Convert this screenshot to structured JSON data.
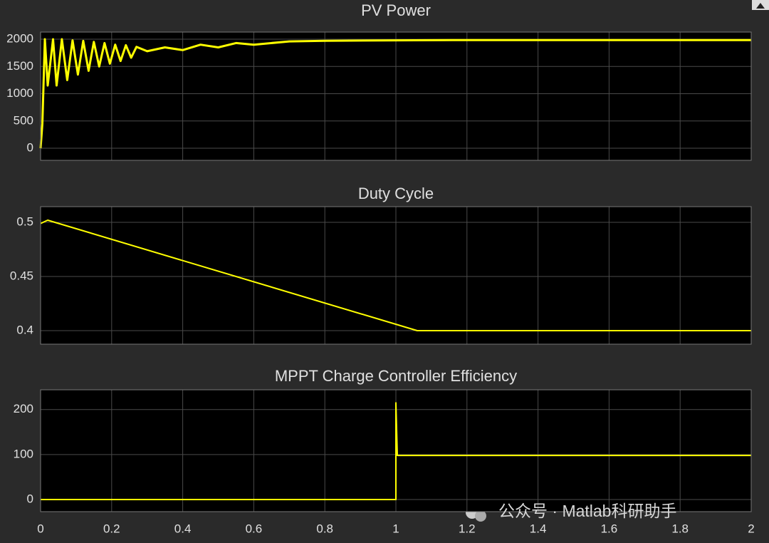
{
  "chart_data": [
    {
      "type": "line",
      "title": "PV Power",
      "color": "#ffff00",
      "grid": true,
      "x": [
        0,
        0.005,
        0.012,
        0.02,
        0.035,
        0.045,
        0.06,
        0.075,
        0.09,
        0.105,
        0.12,
        0.135,
        0.15,
        0.165,
        0.18,
        0.195,
        0.21,
        0.225,
        0.24,
        0.255,
        0.27,
        0.3,
        0.35,
        0.4,
        0.45,
        0.5,
        0.55,
        0.6,
        0.7,
        0.8,
        1.0,
        1.2,
        1.5,
        2.0
      ],
      "values": [
        0,
        450,
        2000,
        1150,
        2000,
        1150,
        2000,
        1250,
        1980,
        1350,
        1970,
        1420,
        1950,
        1500,
        1930,
        1550,
        1900,
        1600,
        1890,
        1660,
        1860,
        1780,
        1850,
        1800,
        1900,
        1850,
        1930,
        1900,
        1960,
        1970,
        1980,
        1985,
        1985,
        1985
      ],
      "xlim": [
        0,
        2
      ],
      "xticks": [
        0,
        0.2,
        0.4,
        0.6,
        0.8,
        1,
        1.2,
        1.4,
        1.6,
        1.8,
        2
      ],
      "ylim": [
        -222,
        2131
      ],
      "yticks": [
        0,
        500,
        1000,
        1500,
        2000
      ]
    },
    {
      "type": "line",
      "title": "Duty Cycle",
      "color": "#ffff00",
      "grid": true,
      "x": [
        0,
        0.02,
        1.06,
        2
      ],
      "values": [
        0.499,
        0.502,
        0.4,
        0.4
      ],
      "xlim": [
        0,
        2
      ],
      "xticks": [
        0,
        0.2,
        0.4,
        0.6,
        0.8,
        1,
        1.2,
        1.4,
        1.6,
        1.8,
        2
      ],
      "ylim": [
        0.3875,
        0.5145
      ],
      "yticks": [
        0.4,
        0.45,
        0.5
      ]
    },
    {
      "type": "line",
      "title": "MPPT Charge Controller Efficiency",
      "color": "#ffff00",
      "grid": true,
      "x": [
        0,
        1,
        1,
        1.004,
        2
      ],
      "values": [
        0,
        0,
        215,
        98,
        98
      ],
      "xlim": [
        0,
        2
      ],
      "xticks": [
        0,
        0.2,
        0.4,
        0.6,
        0.8,
        1,
        1.2,
        1.4,
        1.6,
        1.8,
        2
      ],
      "ylim": [
        -27,
        244
      ],
      "yticks": [
        0,
        100,
        200
      ]
    }
  ],
  "watermark": "公众号 · Matlab科研助手"
}
